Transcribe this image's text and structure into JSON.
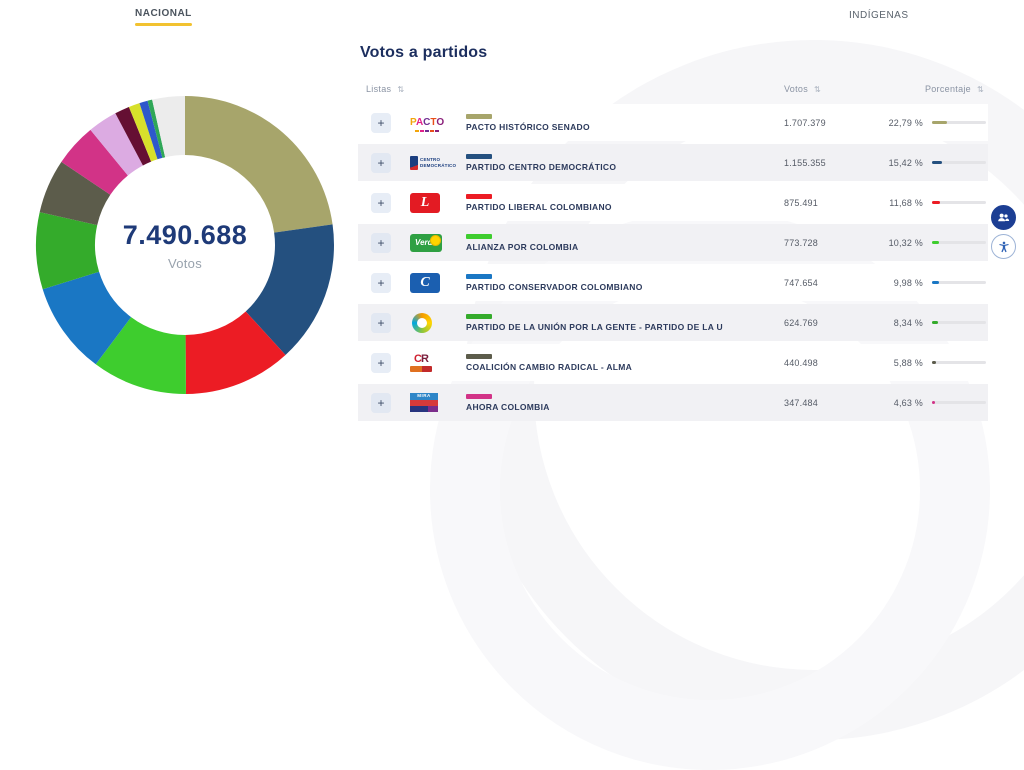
{
  "tabs": {
    "nacional": "NACIONAL",
    "indigenas": "INDÍGENAS"
  },
  "accent": {
    "tab_underline": "#f2c230"
  },
  "donut_center": {
    "total": "7.490.688",
    "label": "Votos"
  },
  "chart_data": {
    "type": "pie",
    "title": "Votos a partidos",
    "center_total": "7.490.688",
    "center_label": "Votos",
    "value_unit": "percent",
    "legend_position": "none",
    "segments": [
      {
        "label": "PACTO HISTÓRICO SENADO",
        "value": 22.79,
        "color": "#a7a56b"
      },
      {
        "label": "PARTIDO CENTRO DEMOCRÁTICO",
        "value": 15.42,
        "color": "#24507f"
      },
      {
        "label": "PARTIDO LIBERAL COLOMBIANO",
        "value": 11.68,
        "color": "#ec1c24"
      },
      {
        "label": "ALIANZA POR COLOMBIA",
        "value": 10.32,
        "color": "#3ecd2e"
      },
      {
        "label": "PARTIDO CONSERVADOR COLOMBIANO",
        "value": 9.98,
        "color": "#1a77c4"
      },
      {
        "label": "PARTIDO DE LA UNIÓN POR LA GENTE - PARTIDO DE LA U",
        "value": 8.34,
        "color": "#34ab2b"
      },
      {
        "label": "COALICIÓN CAMBIO RADICAL - ALMA",
        "value": 5.88,
        "color": "#5c5c4b"
      },
      {
        "label": "AHORA COLOMBIA",
        "value": 4.63,
        "color": "#d23387"
      },
      {
        "label": "otros-1",
        "value": 3.2,
        "color": "#dcabe2"
      },
      {
        "label": "otros-2",
        "value": 1.6,
        "color": "#650f33"
      },
      {
        "label": "otros-3",
        "value": 1.2,
        "color": "#d7e02b"
      },
      {
        "label": "otros-4",
        "value": 0.9,
        "color": "#2e58cb"
      },
      {
        "label": "otros-5",
        "value": 0.5,
        "color": "#2fa757"
      },
      {
        "label": "otros-6",
        "value": 3.54,
        "color": "#ececec"
      }
    ]
  },
  "table": {
    "title": "Votos a partidos",
    "columns": [
      {
        "label": "Listas"
      },
      {
        "label": "Votos"
      },
      {
        "label": "Porcentaje"
      }
    ],
    "sort_icon": "⇅",
    "expand_label": "+",
    "rows": [
      {
        "party": "PACTO HISTÓRICO SENADO",
        "votes": "1.707.379",
        "pct": "22,79 %",
        "pct_value": 22.79,
        "color": "#a7a56b",
        "logo_type": "pacto",
        "logo_text": "PACTO"
      },
      {
        "party": "PARTIDO CENTRO DEMOCRÁTICO",
        "votes": "1.155.355",
        "pct": "15,42 %",
        "pct_value": 15.42,
        "color": "#24507f",
        "logo_type": "centro",
        "logo_text": "CENTRO DEMOCRÁTICO"
      },
      {
        "party": "PARTIDO LIBERAL COLOMBIANO",
        "votes": "875.491",
        "pct": "11,68 %",
        "pct_value": 11.68,
        "color": "#ec1c24",
        "logo_type": "liberal",
        "logo_text": "L"
      },
      {
        "party": "ALIANZA POR COLOMBIA",
        "votes": "773.728",
        "pct": "10,32 %",
        "pct_value": 10.32,
        "color": "#3ecd2e",
        "logo_type": "verde",
        "logo_text": "Verde"
      },
      {
        "party": "PARTIDO CONSERVADOR COLOMBIANO",
        "votes": "747.654",
        "pct": "9,98 %",
        "pct_value": 9.98,
        "color": "#1a77c4",
        "logo_type": "conservador",
        "logo_text": "C"
      },
      {
        "party": "PARTIDO DE LA UNIÓN POR LA GENTE - PARTIDO DE LA U",
        "votes": "624.769",
        "pct": "8,34 %",
        "pct_value": 8.34,
        "color": "#34ab2b",
        "logo_type": "u",
        "logo_text": "U"
      },
      {
        "party": "COALICIÓN CAMBIO RADICAL - ALMA",
        "votes": "440.498",
        "pct": "5,88 %",
        "pct_value": 5.88,
        "color": "#5c5c4b",
        "logo_type": "cr",
        "logo_text": "CR"
      },
      {
        "party": "AHORA COLOMBIA",
        "votes": "347.484",
        "pct": "4,63 %",
        "pct_value": 4.63,
        "color": "#d23387",
        "logo_type": "mira",
        "logo_text": "MIRA"
      }
    ]
  }
}
